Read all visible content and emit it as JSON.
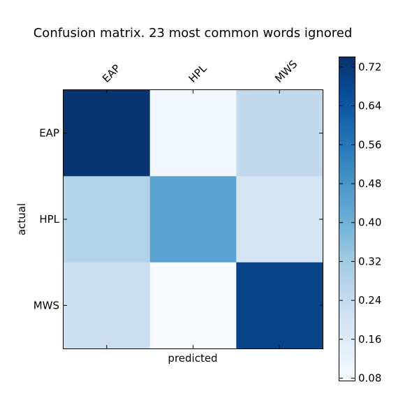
{
  "chart_data": {
    "type": "heatmap",
    "title": "Confusion matrix. 23 most common words ignored",
    "xlabel": "predicted",
    "ylabel": "actual",
    "x_categories": [
      "EAP",
      "HPL",
      "MWS"
    ],
    "y_categories": [
      "EAP",
      "HPL",
      "MWS"
    ],
    "values": [
      [
        0.73,
        0.09,
        0.25
      ],
      [
        0.28,
        0.44,
        0.19
      ],
      [
        0.22,
        0.07,
        0.69
      ]
    ],
    "colorbar": {
      "min": 0.075,
      "max": 0.74,
      "ticks": [
        "0.08",
        "0.16",
        "0.24",
        "0.32",
        "0.40",
        "0.48",
        "0.56",
        "0.64",
        "0.72"
      ],
      "colormap": "Blues"
    },
    "grid": false
  }
}
